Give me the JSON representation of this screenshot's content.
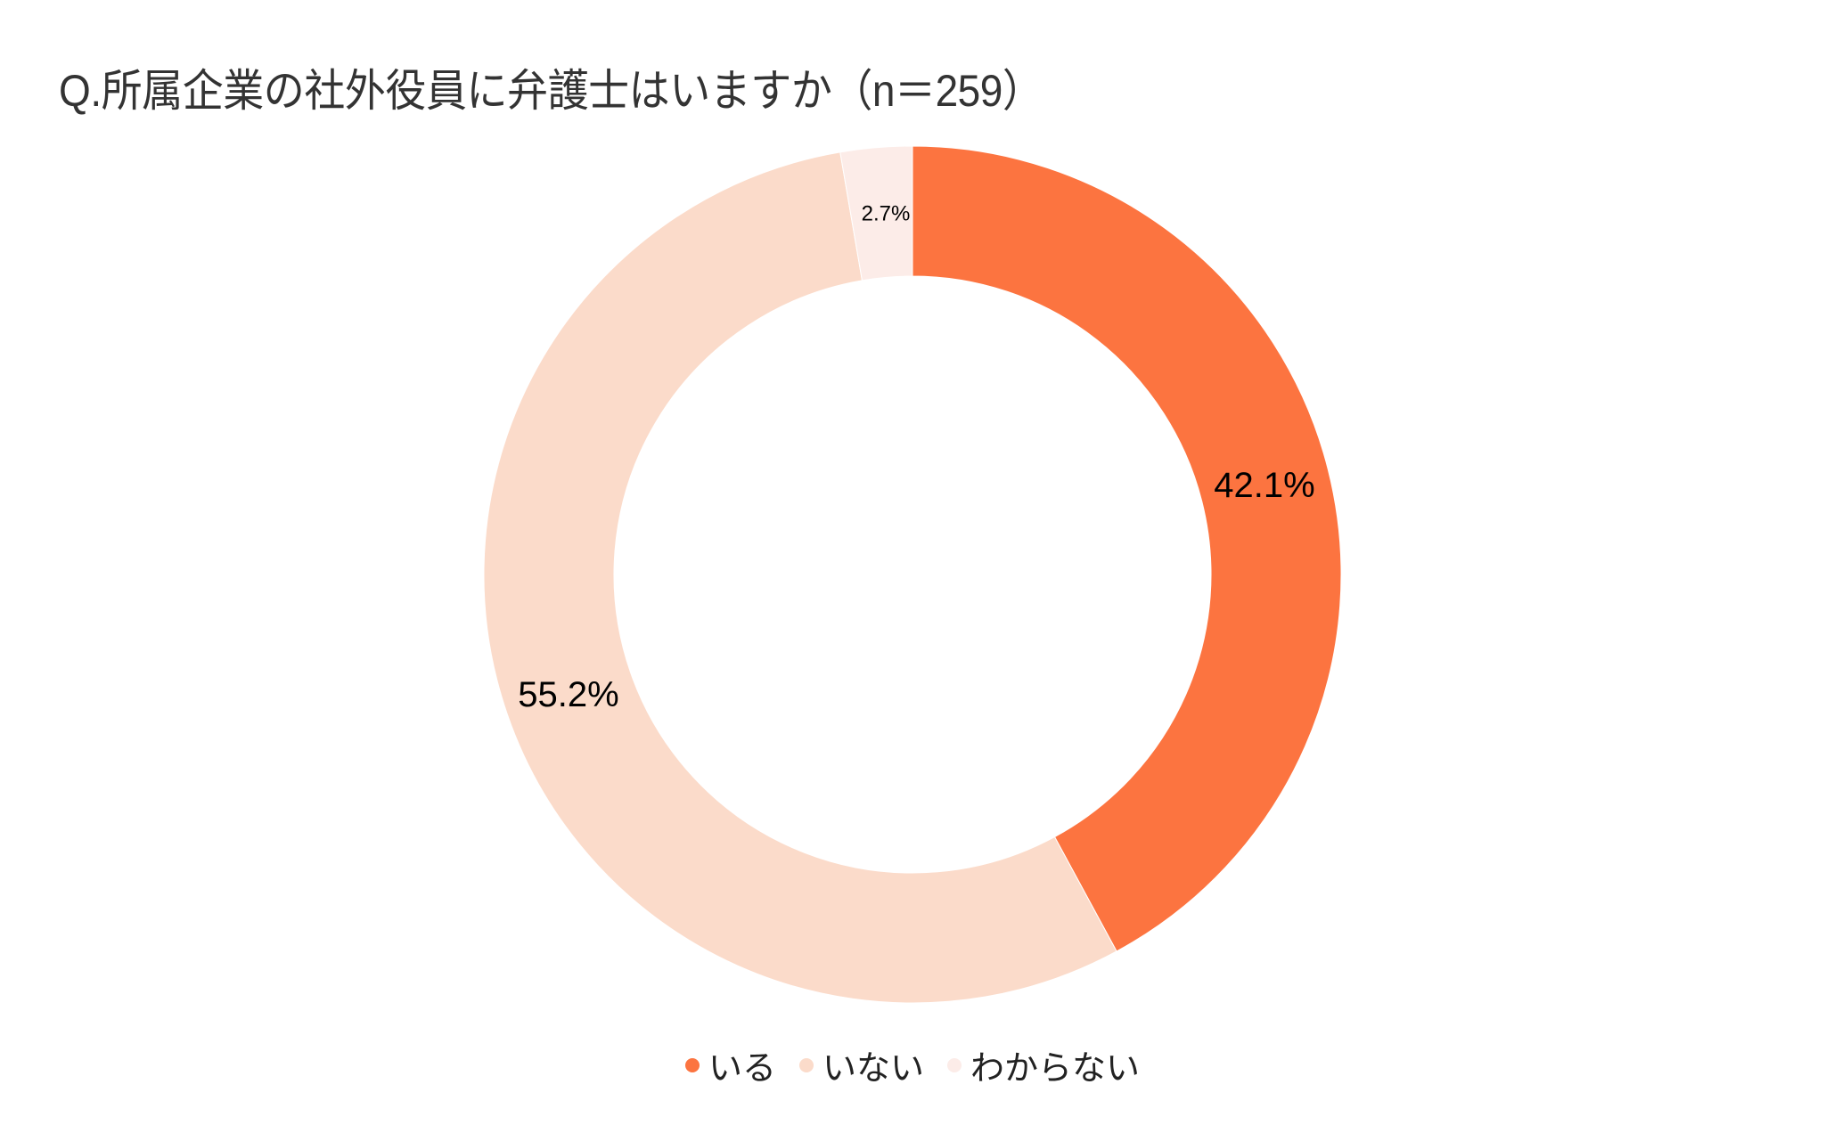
{
  "title": "Q.所属企業の社外役員に弁護士はいますか（n＝259）",
  "chart_data": {
    "type": "pie",
    "subtype": "donut",
    "title": "Q.所属企業の社外役員に弁護士はいますか（n＝259）",
    "n": 259,
    "categories": [
      "いる",
      "いない",
      "わからない"
    ],
    "values": [
      42.1,
      55.2,
      2.7
    ],
    "labels": [
      "42.1%",
      "55.2%",
      "2.7%"
    ],
    "colors": [
      "#FC7440",
      "#FBDBCA",
      "#FCECE8"
    ],
    "start_angle": "12 o'clock",
    "direction": "clockwise",
    "legend_position": "bottom"
  },
  "legend": {
    "items": [
      {
        "label": "いる",
        "color": "#FC7440"
      },
      {
        "label": "いない",
        "color": "#FBDBCA"
      },
      {
        "label": "わからない",
        "color": "#FCECE8"
      }
    ]
  }
}
